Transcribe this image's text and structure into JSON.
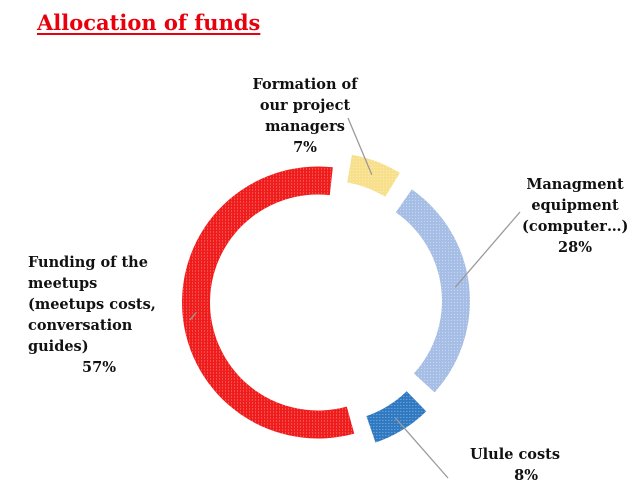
{
  "chart_data": {
    "type": "pie",
    "variant": "donut",
    "title": "Allocation of funds",
    "slices": [
      {
        "name": "Formation of our project managers",
        "lines": [
          "Formation of",
          "our project",
          "managers"
        ],
        "value": 7,
        "label": "7%",
        "color": "#f8df8a"
      },
      {
        "name": "Managment equipment (computer…)",
        "lines": [
          "Managment",
          "equipment",
          "(computer…)"
        ],
        "value": 28,
        "label": "28%",
        "color": "#a6bde5"
      },
      {
        "name": "Ulule costs",
        "lines": [
          "Ulule costs"
        ],
        "value": 8,
        "label": "8%",
        "color": "#2f79c2"
      },
      {
        "name": "Funding of the meetups (meetups costs, conversation guides)",
        "lines": [
          "Funding of the",
          "meetups",
          "(meetups costs,",
          "conversation",
          "guides)"
        ],
        "value": 57,
        "label": "57%",
        "color": "#f01c1c"
      }
    ]
  }
}
